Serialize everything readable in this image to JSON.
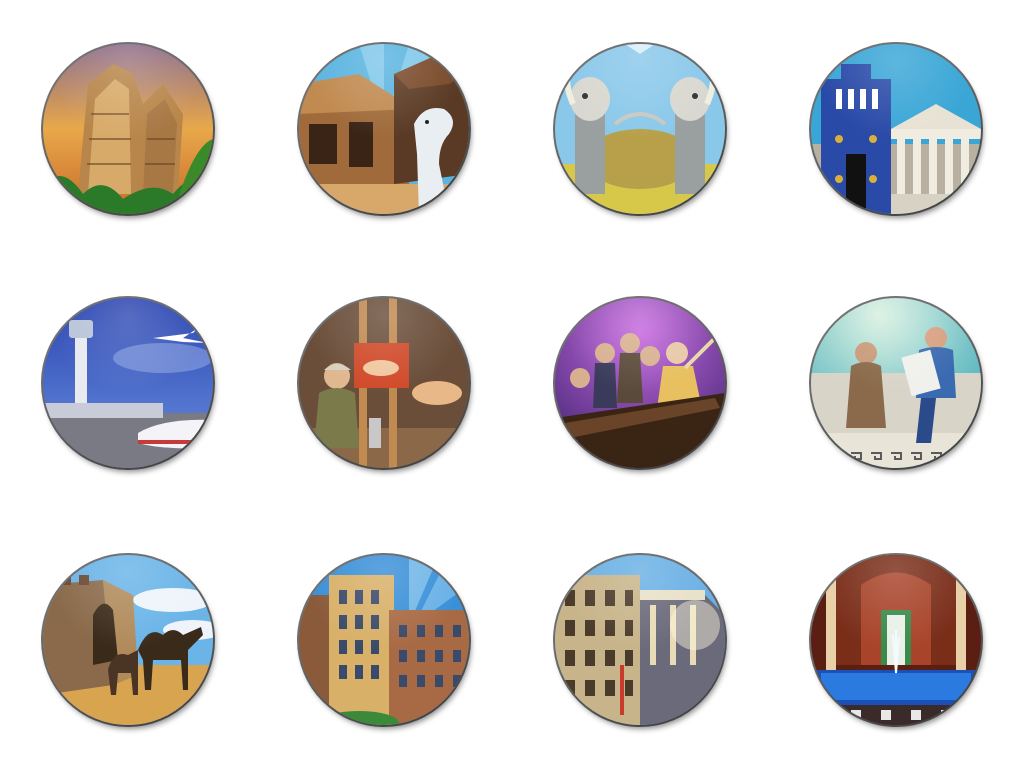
{
  "icons": [
    {
      "name": "stone-ruins-icon",
      "palette": {
        "sky": "#e0a24a",
        "accent": "#c49a5a"
      }
    },
    {
      "name": "stable-icon",
      "palette": {
        "sky": "#4aa8d8",
        "accent": "#8a5a34"
      }
    },
    {
      "name": "tusk-gate-icon",
      "palette": {
        "sky": "#7fc3e8",
        "accent": "#d8c35a"
      }
    },
    {
      "name": "ishtar-palace-icon",
      "palette": {
        "sky": "#3aa0d0",
        "accent": "#2a3f8f"
      }
    },
    {
      "name": "airport-icon",
      "palette": {
        "sky": "#2f4fc0",
        "accent": "#e6e6ea"
      }
    },
    {
      "name": "painter-studio-icon",
      "palette": {
        "sky": "#6a4a32",
        "accent": "#d04a2a"
      }
    },
    {
      "name": "orchestra-icon",
      "palette": {
        "sky": "#7a3ab0",
        "accent": "#e8c878"
      }
    },
    {
      "name": "philosophers-icon",
      "palette": {
        "sky": "#3fb4b4",
        "accent": "#e8e6dc"
      }
    },
    {
      "name": "caravan-icon",
      "palette": {
        "sky": "#5aa8e0",
        "accent": "#d8a050"
      }
    },
    {
      "name": "grand-hotel-icon",
      "palette": {
        "sky": "#2e8ad8",
        "accent": "#c8a050"
      }
    },
    {
      "name": "stock-exchange-icon",
      "palette": {
        "sky": "#5aa0e0",
        "accent": "#c8b890"
      }
    },
    {
      "name": "palace-bath-icon",
      "palette": {
        "sky": "#7a2a1a",
        "accent": "#2a6ac8"
      }
    }
  ]
}
